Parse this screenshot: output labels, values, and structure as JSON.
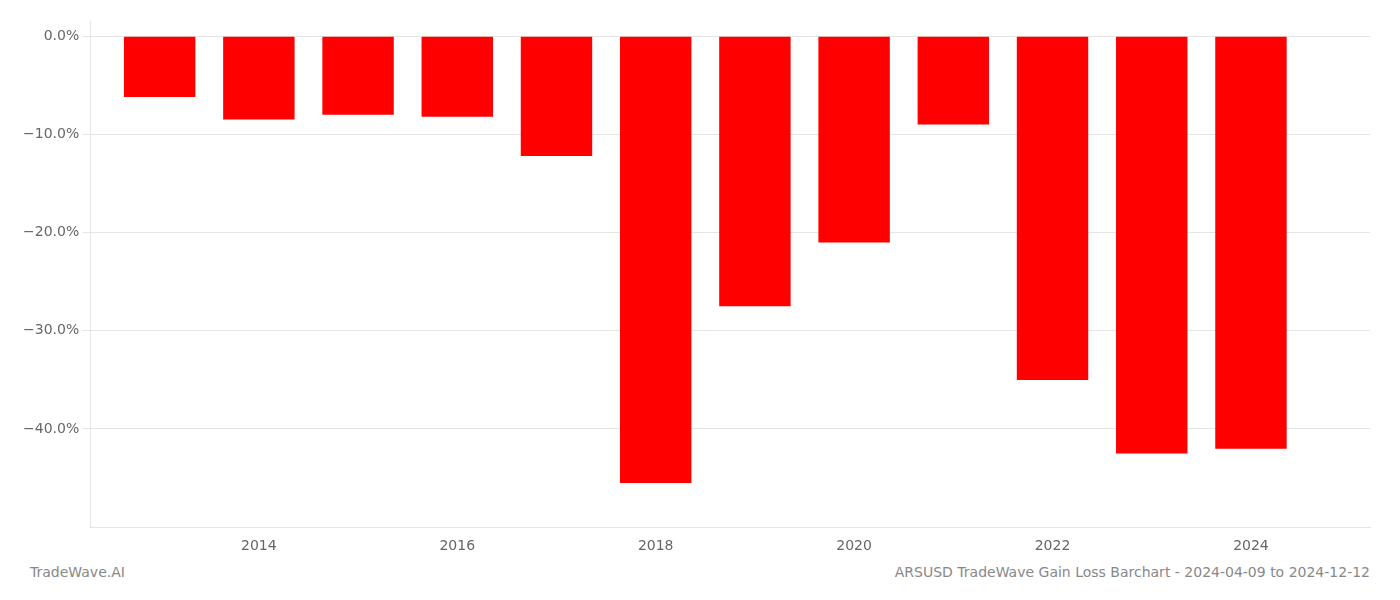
{
  "chart_data": {
    "type": "bar",
    "x": [
      2013,
      2014,
      2015,
      2016,
      2017,
      2018,
      2019,
      2020,
      2021,
      2022,
      2023,
      2024
    ],
    "values": [
      -6.2,
      -8.5,
      -8.0,
      -8.2,
      -12.2,
      -45.5,
      -27.5,
      -21.0,
      -9.0,
      -35.0,
      -42.5,
      -42.0
    ],
    "color": "#ff0000",
    "xlim": [
      2012.3,
      2025.2
    ],
    "xticks": [
      2014,
      2016,
      2018,
      2020,
      2022,
      2024
    ],
    "ylim": [
      -50,
      1.5
    ],
    "yticks": [
      {
        "value": 0,
        "label": "0.0%"
      },
      {
        "value": -10,
        "label": "−10.0%"
      },
      {
        "value": -20,
        "label": "−20.0%"
      },
      {
        "value": -30,
        "label": "−30.0%"
      },
      {
        "value": -40,
        "label": "−40.0%"
      }
    ],
    "grid": "y",
    "annotations": [
      "TradeWave.AI",
      "ARSUSD TradeWave Gain Loss Barchart - 2024-04-09 to 2024-12-12"
    ]
  }
}
